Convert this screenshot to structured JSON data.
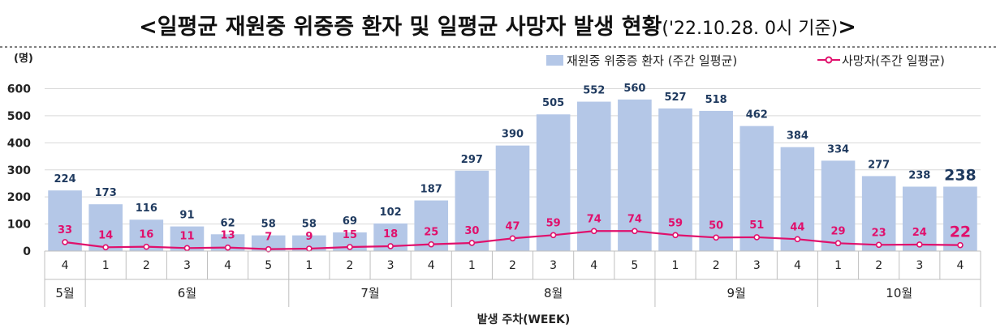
{
  "title": {
    "main": "<일평균 재원중 위중증 환자 및 일평균 사망자 발생 현황",
    "sub": "('22.10.28. 0시 기준)",
    "end": ">"
  },
  "chart_data": {
    "type": "bar+line",
    "y_unit": "(명)",
    "ylim": [
      0,
      600
    ],
    "yticks": [
      0,
      100,
      200,
      300,
      400,
      500,
      600
    ],
    "grid": true,
    "legend_position": "top-right",
    "xlabel": "발생 주차(WEEK)",
    "categories": [
      "4",
      "1",
      "2",
      "3",
      "4",
      "5",
      "1",
      "2",
      "3",
      "4",
      "1",
      "2",
      "3",
      "4",
      "5",
      "1",
      "2",
      "3",
      "4",
      "1",
      "2",
      "3",
      "4"
    ],
    "months": [
      {
        "label": "5월",
        "count": 1
      },
      {
        "label": "6월",
        "count": 5
      },
      {
        "label": "7월",
        "count": 4
      },
      {
        "label": "8월",
        "count": 5
      },
      {
        "label": "9월",
        "count": 4
      },
      {
        "label": "10월",
        "count": 4
      }
    ],
    "series": [
      {
        "name": "재원중 위중증 환자 (주간 일평균)",
        "type": "bar",
        "color": "#b4c7e7",
        "label_color": "#1f3a5f",
        "values": [
          224,
          173,
          116,
          91,
          62,
          58,
          58,
          69,
          102,
          187,
          297,
          390,
          505,
          552,
          560,
          527,
          518,
          462,
          384,
          334,
          277,
          238,
          238
        ]
      },
      {
        "name": "사망자(주간 일평균)",
        "type": "line",
        "color": "#e0106c",
        "values": [
          33,
          14,
          16,
          11,
          13,
          7,
          9,
          15,
          18,
          25,
          30,
          47,
          59,
          74,
          74,
          59,
          50,
          51,
          44,
          29,
          23,
          24,
          22
        ]
      }
    ]
  }
}
